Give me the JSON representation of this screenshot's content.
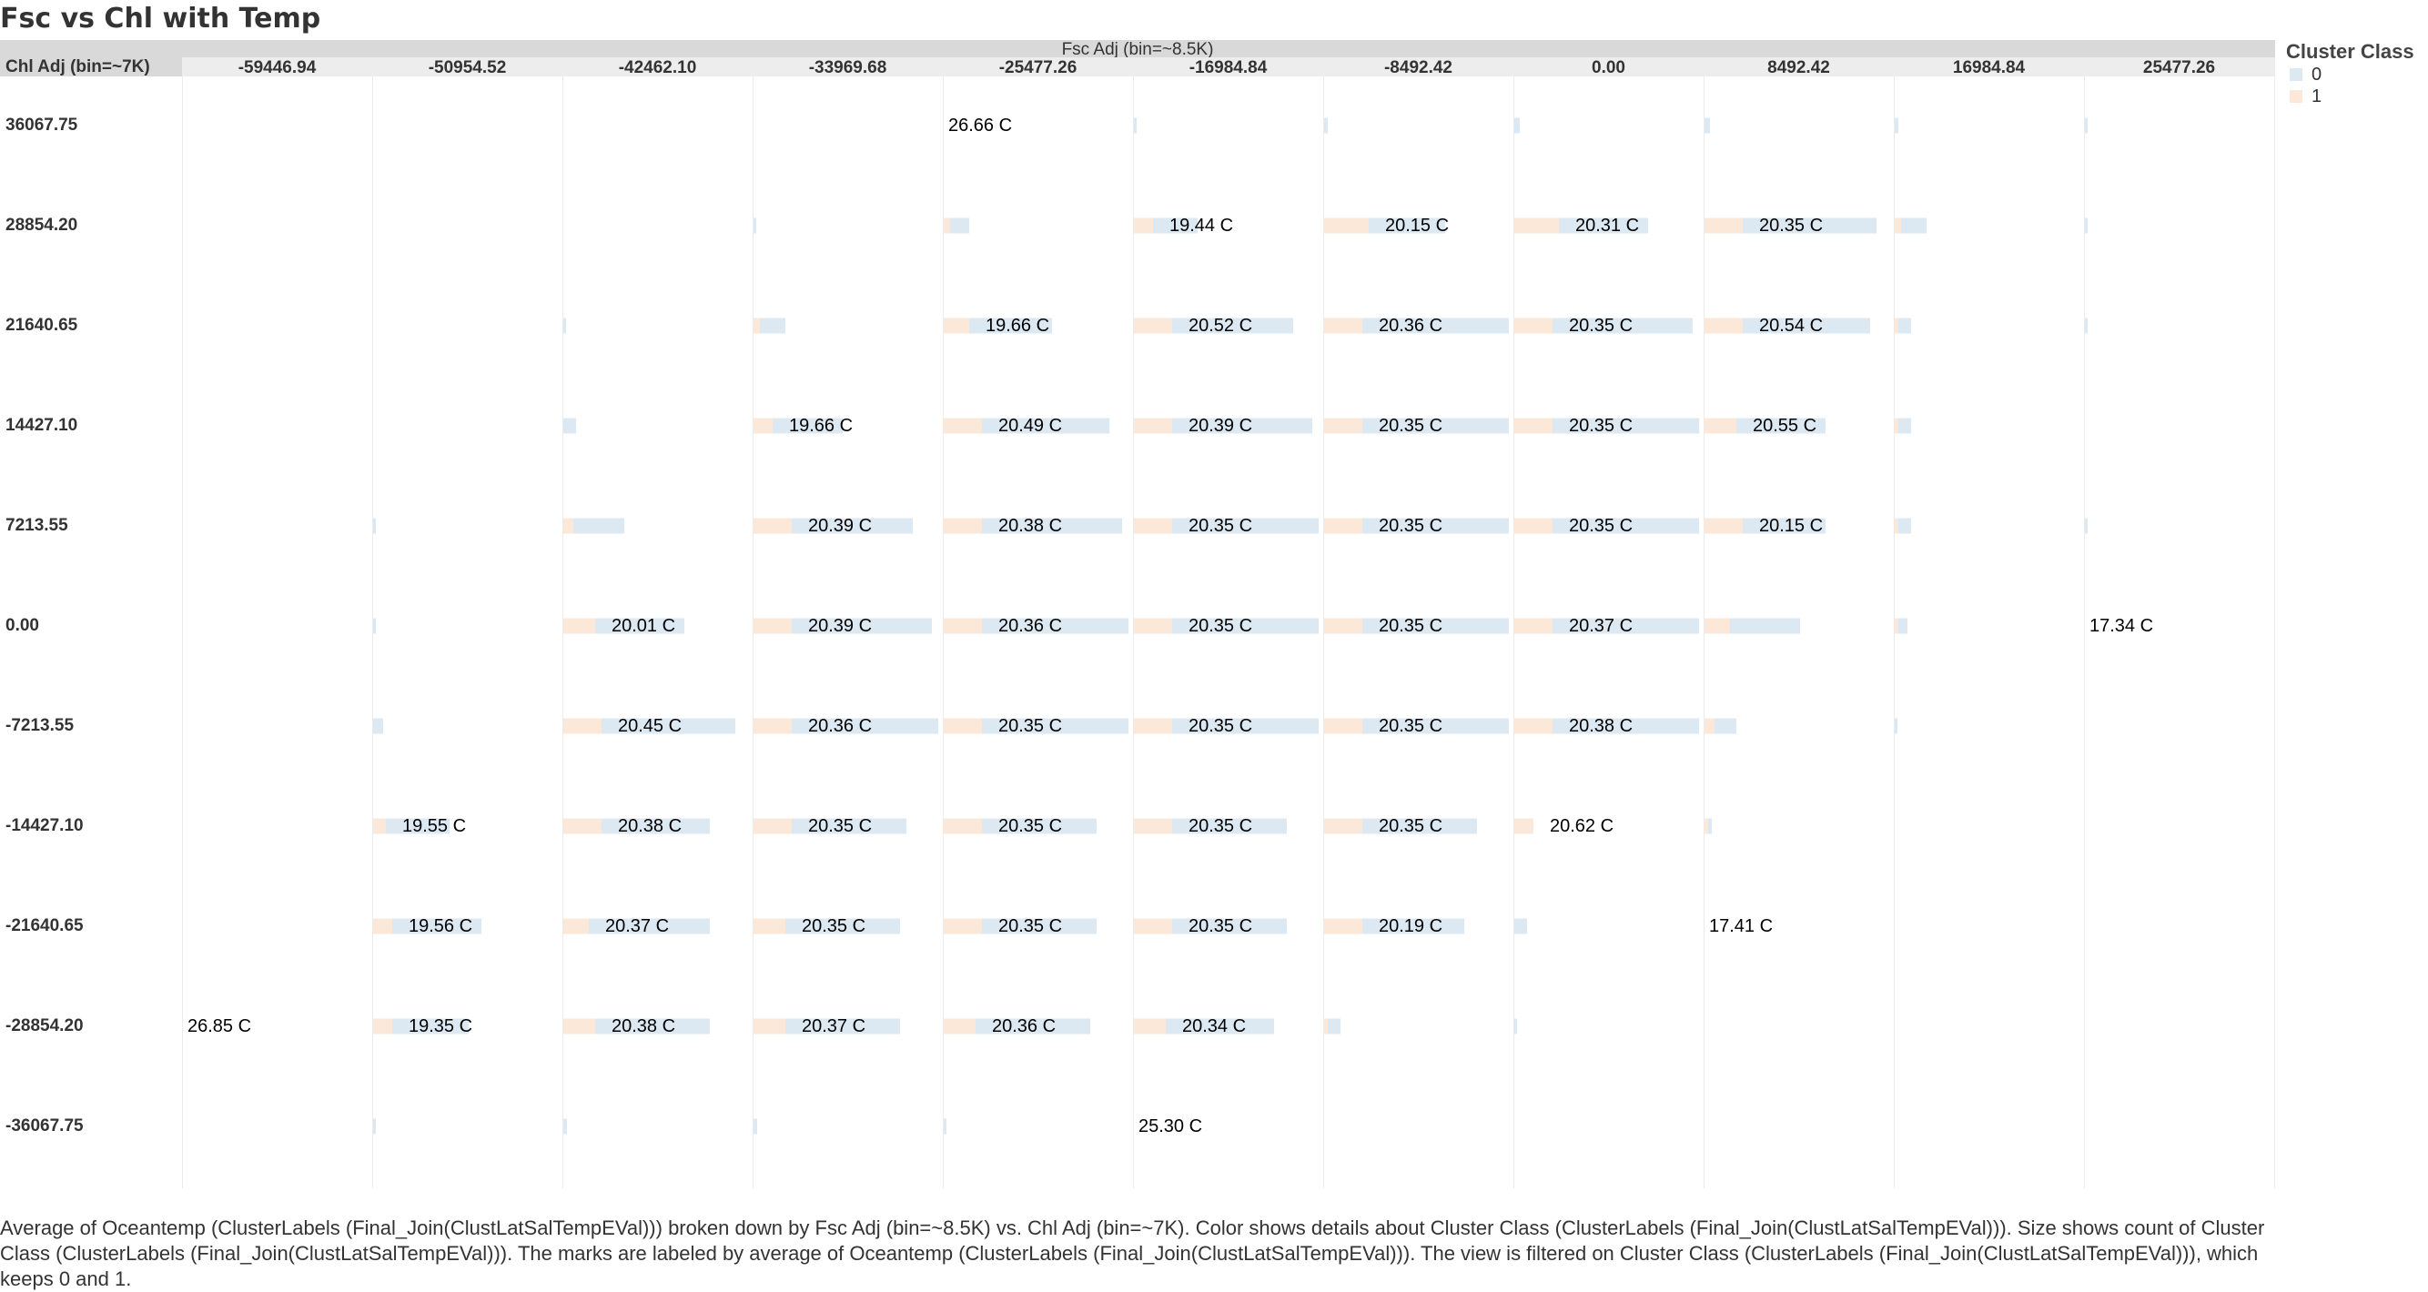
{
  "title": "Fsc vs Chl with Temp",
  "col_axis_title": "Fsc Adj (bin=~8.5K)",
  "row_axis_title": "Chl Adj (bin=~7K)",
  "legend": {
    "title": "Cluster Class",
    "items": [
      {
        "label": "0",
        "color": "#dce8f2"
      },
      {
        "label": "1",
        "color": "#fce8d9"
      }
    ]
  },
  "caption": "Average of Oceantemp (ClusterLabels (Final_Join(ClustLatSalTempEVal))) broken down by Fsc Adj (bin=~8.5K) vs. Chl Adj (bin=~7K).  Color shows details about Cluster Class (ClusterLabels (Final_Join(ClustLatSalTempEVal))).  Size shows count of Cluster Class (ClusterLabels (Final_Join(ClustLatSalTempEVal))).  The marks are labeled by average of Oceantemp (ClusterLabels (Final_Join(ClustLatSalTempEVal))). The view is filtered on Cluster Class (ClusterLabels (Final_Join(ClustLatSalTempEVal))), which keeps 0 and 1.",
  "chart_data": {
    "type": "table",
    "description_of_marks": "stacked horizontal bars per cell; bar length = count of Cluster Class (0 and 1), label = average Oceantemp",
    "columns": [
      "-59446.94",
      "-50954.52",
      "-42462.10",
      "-33969.68",
      "-25477.26",
      "-16984.84",
      "-8492.42",
      "0.00",
      "8492.42",
      "16984.84",
      "25477.26"
    ],
    "rows": [
      "36067.75",
      "28854.20",
      "21640.65",
      "14427.10",
      "7213.55",
      "0.00",
      "-7213.55",
      "-14427.10",
      "-21640.65",
      "-28854.20",
      "-36067.75"
    ],
    "cells": [
      {
        "r": 0,
        "c": 4,
        "label": "26.66 C",
        "n1": 0,
        "n0": 0
      },
      {
        "r": 0,
        "c": 5,
        "label": "",
        "n1": 0,
        "n0": 0.4
      },
      {
        "r": 0,
        "c": 6,
        "label": "",
        "n1": 0,
        "n0": 0.6
      },
      {
        "r": 0,
        "c": 7,
        "label": "",
        "n1": 0,
        "n0": 0.8
      },
      {
        "r": 0,
        "c": 8,
        "label": "",
        "n1": 0,
        "n0": 0.8
      },
      {
        "r": 0,
        "c": 9,
        "label": "",
        "n1": 0,
        "n0": 0.6
      },
      {
        "r": 0,
        "c": 10,
        "label": "",
        "n1": 0,
        "n0": 0.4
      },
      {
        "r": 1,
        "c": 3,
        "label": "",
        "n1": 0,
        "n0": 0.4
      },
      {
        "r": 1,
        "c": 4,
        "label": "",
        "n1": 1,
        "n0": 3
      },
      {
        "r": 1,
        "c": 5,
        "label": "19.44 C",
        "n1": 3,
        "n0": 7
      },
      {
        "r": 1,
        "c": 6,
        "label": "20.15 C",
        "n1": 7,
        "n0": 12
      },
      {
        "r": 1,
        "c": 7,
        "label": "20.31 C",
        "n1": 7,
        "n0": 14
      },
      {
        "r": 1,
        "c": 8,
        "label": "20.35 C",
        "n1": 6,
        "n0": 21
      },
      {
        "r": 1,
        "c": 9,
        "label": "",
        "n1": 1,
        "n0": 4
      },
      {
        "r": 1,
        "c": 10,
        "label": "",
        "n1": 0,
        "n0": 0.4
      },
      {
        "r": 2,
        "c": 2,
        "label": "",
        "n1": 0,
        "n0": 0.4
      },
      {
        "r": 2,
        "c": 3,
        "label": "",
        "n1": 1,
        "n0": 4
      },
      {
        "r": 2,
        "c": 4,
        "label": "19.66 C",
        "n1": 4,
        "n0": 13
      },
      {
        "r": 2,
        "c": 5,
        "label": "20.52 C",
        "n1": 6,
        "n0": 19
      },
      {
        "r": 2,
        "c": 6,
        "label": "20.36 C",
        "n1": 6,
        "n0": 23
      },
      {
        "r": 2,
        "c": 7,
        "label": "20.35 C",
        "n1": 6,
        "n0": 22
      },
      {
        "r": 2,
        "c": 8,
        "label": "20.54 C",
        "n1": 6,
        "n0": 20
      },
      {
        "r": 2,
        "c": 9,
        "label": "",
        "n1": 0.6,
        "n0": 2
      },
      {
        "r": 2,
        "c": 10,
        "label": "",
        "n1": 0,
        "n0": 0.4
      },
      {
        "r": 3,
        "c": 2,
        "label": "",
        "n1": 0,
        "n0": 2
      },
      {
        "r": 3,
        "c": 3,
        "label": "19.66 C",
        "n1": 3,
        "n0": 11
      },
      {
        "r": 3,
        "c": 4,
        "label": "20.49 C",
        "n1": 6,
        "n0": 20
      },
      {
        "r": 3,
        "c": 5,
        "label": "20.39 C",
        "n1": 6,
        "n0": 22
      },
      {
        "r": 3,
        "c": 6,
        "label": "20.35 C",
        "n1": 6,
        "n0": 23
      },
      {
        "r": 3,
        "c": 7,
        "label": "20.35 C",
        "n1": 6,
        "n0": 23
      },
      {
        "r": 3,
        "c": 8,
        "label": "20.55 C",
        "n1": 5,
        "n0": 14
      },
      {
        "r": 3,
        "c": 9,
        "label": "",
        "n1": 0.6,
        "n0": 2
      },
      {
        "r": 4,
        "c": 1,
        "label": "",
        "n1": 0,
        "n0": 0.4
      },
      {
        "r": 4,
        "c": 2,
        "label": "",
        "n1": 1.5,
        "n0": 8
      },
      {
        "r": 4,
        "c": 3,
        "label": "20.39 C",
        "n1": 6,
        "n0": 19
      },
      {
        "r": 4,
        "c": 4,
        "label": "20.38 C",
        "n1": 6,
        "n0": 22
      },
      {
        "r": 4,
        "c": 5,
        "label": "20.35 C",
        "n1": 6,
        "n0": 23
      },
      {
        "r": 4,
        "c": 6,
        "label": "20.35 C",
        "n1": 6,
        "n0": 23
      },
      {
        "r": 4,
        "c": 7,
        "label": "20.35 C",
        "n1": 6,
        "n0": 23
      },
      {
        "r": 4,
        "c": 8,
        "label": "20.15 C",
        "n1": 6,
        "n0": 13
      },
      {
        "r": 4,
        "c": 9,
        "label": "",
        "n1": 0.6,
        "n0": 2
      },
      {
        "r": 4,
        "c": 10,
        "label": "",
        "n1": 0,
        "n0": 0.4
      },
      {
        "r": 5,
        "c": 1,
        "label": "",
        "n1": 0,
        "n0": 0.4
      },
      {
        "r": 5,
        "c": 2,
        "label": "20.01 C",
        "n1": 5,
        "n0": 14
      },
      {
        "r": 5,
        "c": 3,
        "label": "20.39 C",
        "n1": 6,
        "n0": 22
      },
      {
        "r": 5,
        "c": 4,
        "label": "20.36 C",
        "n1": 6,
        "n0": 23
      },
      {
        "r": 5,
        "c": 5,
        "label": "20.35 C",
        "n1": 6,
        "n0": 23
      },
      {
        "r": 5,
        "c": 6,
        "label": "20.35 C",
        "n1": 6,
        "n0": 23
      },
      {
        "r": 5,
        "c": 7,
        "label": "20.37 C",
        "n1": 6,
        "n0": 23
      },
      {
        "r": 5,
        "c": 8,
        "label": "",
        "n1": 4,
        "n0": 11
      },
      {
        "r": 5,
        "c": 9,
        "label": "",
        "n1": 0.6,
        "n0": 1.4
      },
      {
        "r": 5,
        "c": 10,
        "label": "17.34 C",
        "n1": 0,
        "n0": 0
      },
      {
        "r": 6,
        "c": 1,
        "label": "",
        "n1": 0,
        "n0": 1.6
      },
      {
        "r": 6,
        "c": 2,
        "label": "20.45 C",
        "n1": 6,
        "n0": 21
      },
      {
        "r": 6,
        "c": 3,
        "label": "20.36 C",
        "n1": 6,
        "n0": 23
      },
      {
        "r": 6,
        "c": 4,
        "label": "20.35 C",
        "n1": 6,
        "n0": 23
      },
      {
        "r": 6,
        "c": 5,
        "label": "20.35 C",
        "n1": 6,
        "n0": 23
      },
      {
        "r": 6,
        "c": 6,
        "label": "20.35 C",
        "n1": 6,
        "n0": 23
      },
      {
        "r": 6,
        "c": 7,
        "label": "20.38 C",
        "n1": 6,
        "n0": 23
      },
      {
        "r": 6,
        "c": 8,
        "label": "",
        "n1": 1.5,
        "n0": 3.5
      },
      {
        "r": 6,
        "c": 9,
        "label": "",
        "n1": 0,
        "n0": 0.4
      },
      {
        "r": 7,
        "c": 1,
        "label": "19.55 C",
        "n1": 2,
        "n0": 10
      },
      {
        "r": 7,
        "c": 2,
        "label": "20.38 C",
        "n1": 6,
        "n0": 17
      },
      {
        "r": 7,
        "c": 3,
        "label": "20.35 C",
        "n1": 6,
        "n0": 18
      },
      {
        "r": 7,
        "c": 4,
        "label": "20.35 C",
        "n1": 6,
        "n0": 18
      },
      {
        "r": 7,
        "c": 5,
        "label": "20.35 C",
        "n1": 6,
        "n0": 18
      },
      {
        "r": 7,
        "c": 6,
        "label": "20.35 C",
        "n1": 6,
        "n0": 18
      },
      {
        "r": 7,
        "c": 7,
        "label": "20.62 C",
        "n1": 3,
        "n0": 0
      },
      {
        "r": 7,
        "c": 8,
        "label": "",
        "n1": 0.6,
        "n0": 0.6
      },
      {
        "r": 8,
        "c": 1,
        "label": "19.56 C",
        "n1": 3,
        "n0": 14
      },
      {
        "r": 8,
        "c": 2,
        "label": "20.37 C",
        "n1": 4,
        "n0": 19
      },
      {
        "r": 8,
        "c": 3,
        "label": "20.35 C",
        "n1": 5,
        "n0": 18
      },
      {
        "r": 8,
        "c": 4,
        "label": "20.35 C",
        "n1": 6,
        "n0": 18
      },
      {
        "r": 8,
        "c": 5,
        "label": "20.35 C",
        "n1": 6,
        "n0": 18
      },
      {
        "r": 8,
        "c": 6,
        "label": "20.19 C",
        "n1": 6,
        "n0": 16
      },
      {
        "r": 8,
        "c": 7,
        "label": "",
        "n1": 0,
        "n0": 2
      },
      {
        "r": 8,
        "c": 8,
        "label": "17.41 C",
        "n1": 0,
        "n0": 0
      },
      {
        "r": 9,
        "c": 0,
        "label": "26.85 C",
        "n1": 0,
        "n0": 0
      },
      {
        "r": 9,
        "c": 1,
        "label": "19.35 C",
        "n1": 3,
        "n0": 12
      },
      {
        "r": 9,
        "c": 2,
        "label": "20.38 C",
        "n1": 5,
        "n0": 18
      },
      {
        "r": 9,
        "c": 3,
        "label": "20.37 C",
        "n1": 5,
        "n0": 18
      },
      {
        "r": 9,
        "c": 4,
        "label": "20.36 C",
        "n1": 5,
        "n0": 18
      },
      {
        "r": 9,
        "c": 5,
        "label": "20.34 C",
        "n1": 5,
        "n0": 17
      },
      {
        "r": 9,
        "c": 6,
        "label": "",
        "n1": 0.6,
        "n0": 2
      },
      {
        "r": 9,
        "c": 7,
        "label": "",
        "n1": 0,
        "n0": 0.4
      },
      {
        "r": 10,
        "c": 1,
        "label": "",
        "n1": 0,
        "n0": 0.4
      },
      {
        "r": 10,
        "c": 2,
        "label": "",
        "n1": 0,
        "n0": 0.6
      },
      {
        "r": 10,
        "c": 3,
        "label": "",
        "n1": 0,
        "n0": 0.6
      },
      {
        "r": 10,
        "c": 4,
        "label": "",
        "n1": 0,
        "n0": 0.4
      },
      {
        "r": 10,
        "c": 5,
        "label": "25.30 C",
        "n1": 0,
        "n0": 0
      }
    ]
  }
}
